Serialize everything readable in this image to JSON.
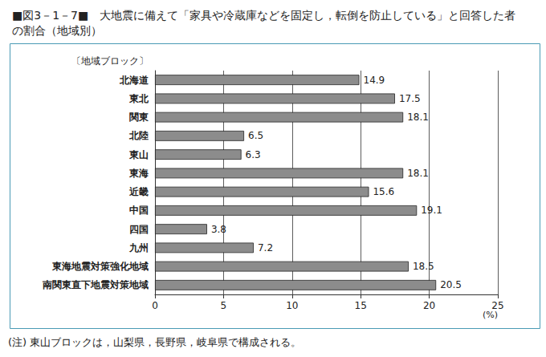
{
  "chart_data": {
    "type": "bar",
    "title": "■図3－1－7■　大地震に備えて「家具や冷蔵庫などを固定し，転倒を防止している」と回答した者の割合（地域別）",
    "y_label": "〔地域ブロック〕",
    "x_label": "(%)",
    "note": "(注) 東山ブロックは，山梨県，長野県，岐阜県で構成される。",
    "orientation": "horizontal",
    "categories": [
      "北海道",
      "東北",
      "関東",
      "北陸",
      "東山",
      "東海",
      "近畿",
      "中国",
      "四国",
      "九州",
      "東海地震対策強化地域",
      "南関東直下地震対策地域"
    ],
    "values": [
      14.9,
      17.5,
      18.1,
      6.5,
      6.3,
      18.1,
      15.6,
      19.1,
      3.8,
      7.2,
      18.5,
      20.5
    ],
    "color": "#8c8c8c",
    "xlim": [
      0,
      25
    ],
    "xticks": [
      0,
      5,
      10,
      15,
      20,
      25
    ],
    "grid": true,
    "data_labels": true
  }
}
